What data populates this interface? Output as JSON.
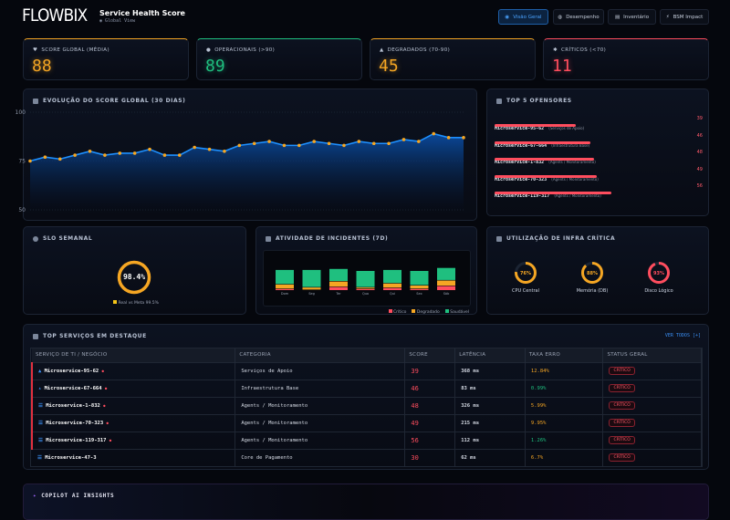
{
  "header": {
    "logo": "FLOWBIX",
    "title": "Service Health Score",
    "subtitle": "Global View",
    "nav": [
      {
        "label": "Visão Geral",
        "icon": "globe-icon",
        "active": true
      },
      {
        "label": "Desempenho",
        "icon": "gauge-icon"
      },
      {
        "label": "Inventário",
        "icon": "server-icon"
      },
      {
        "label": "BSM Impact",
        "icon": "bolt-icon"
      }
    ]
  },
  "kpis": [
    {
      "label": "SCORE GLOBAL (MÉDIA)",
      "value": "88",
      "color": "#f5a623",
      "icon": "heart-icon"
    },
    {
      "label": "OPERACIONAIS (>90)",
      "value": "89",
      "color": "#1fbf7f",
      "icon": "check-shield-icon"
    },
    {
      "label": "DEGRADADOS (70-90)",
      "value": "45",
      "color": "#f5a623",
      "icon": "warning-icon"
    },
    {
      "label": "CRÍTICOS (<70)",
      "value": "11",
      "color": "#ff4d5e",
      "icon": "alert-icon"
    }
  ],
  "chart_data": [
    {
      "type": "area",
      "title": "EVOLUÇÃO DO SCORE GLOBAL (30 DIAS)",
      "ylim": [
        50,
        100
      ],
      "yticks": [
        "100",
        "75",
        "50"
      ],
      "grid": true,
      "values": [
        75,
        77,
        76,
        78,
        80,
        78,
        79,
        79,
        81,
        78,
        78,
        82,
        81,
        80,
        83,
        84,
        85,
        83,
        83,
        85,
        84,
        83,
        85,
        84,
        84,
        86,
        85,
        89,
        87,
        87
      ],
      "line_color": "#1e90ff",
      "point_color": "#f5a623"
    },
    {
      "type": "bar",
      "stacked": true,
      "title": "ATIVIDADE DE INCIDENTES (7D)",
      "categories": [
        "Dom",
        "Seg",
        "Ter",
        "Qua",
        "Qui",
        "Sex",
        "Sáb"
      ],
      "series": [
        {
          "name": "Crítico",
          "color": "#ff4d5e",
          "values": [
            1,
            0,
            3,
            1,
            2,
            1,
            4
          ]
        },
        {
          "name": "Degradado",
          "color": "#f5a623",
          "values": [
            4,
            2,
            5,
            1,
            4,
            3,
            5
          ]
        },
        {
          "name": "Saudável",
          "color": "#1fbf7f",
          "values": [
            14,
            17,
            12,
            16,
            13,
            14,
            12
          ]
        }
      ],
      "legend": "bottom-right"
    }
  ],
  "offenders": {
    "title": "TOP 5 OFENSORES",
    "items": [
      {
        "name": "Microservice-95-62",
        "category": "(Serviços de Apoio)",
        "score": 39
      },
      {
        "name": "Microservice-67-664",
        "category": "(Infraestrutura Base)",
        "score": 46
      },
      {
        "name": "Microservice-1-832",
        "category": "(Agents / Monitoramento)",
        "score": 48
      },
      {
        "name": "Microservice-70-323",
        "category": "(Agents / Monitoramento)",
        "score": 49
      },
      {
        "name": "Microservice-119-317",
        "category": "(Agents / Monitoramento)",
        "score": 56
      }
    ]
  },
  "slo": {
    "title": "SLO SEMANAL",
    "value": "98.4%",
    "percent": 98.4,
    "legend": "Real vs Meta 99.5%"
  },
  "infra": {
    "title": "UTILIZAÇÃO DE INFRA CRÍTICA",
    "items": [
      {
        "label": "CPU Central",
        "value": "76%",
        "percent": 76,
        "color": "#f5a623"
      },
      {
        "label": "Memória (DB)",
        "value": "88%",
        "percent": 88,
        "color": "#f5a623"
      },
      {
        "label": "Disco Lógico",
        "value": "93%",
        "percent": 93,
        "color": "#ff4d5e"
      }
    ]
  },
  "services": {
    "title": "TOP SERVIÇOS EM DESTAQUE",
    "view_all": "VER TODOS [+]",
    "columns": [
      "SERVIÇO DE TI / NEGÓCIO",
      "CATEGORIA",
      "SCORE",
      "LATÊNCIA",
      "TAXA ERRO",
      "STATUS GERAL"
    ],
    "rows": [
      {
        "name": "Microservice-95-62",
        "category": "Serviços de Apoio",
        "score": "39",
        "latency": "368 ms",
        "error": "12.84%",
        "error_color": "#f5a623",
        "status": "CRÍTICO",
        "icon": "cluster-icon",
        "flag": true
      },
      {
        "name": "Microservice-67-664",
        "category": "Infraestrutura Base",
        "score": "46",
        "latency": "83 ms",
        "error": "0.99%",
        "error_color": "#1fbf7f",
        "status": "CRÍTICO",
        "icon": "network-icon",
        "flag": true
      },
      {
        "name": "Microservice-1-832",
        "category": "Agents / Monitoramento",
        "score": "48",
        "latency": "326 ms",
        "error": "5.99%",
        "error_color": "#f5a623",
        "status": "CRÍTICO",
        "icon": "server-icon",
        "flag": true
      },
      {
        "name": "Microservice-70-323",
        "category": "Agents / Monitoramento",
        "score": "49",
        "latency": "215 ms",
        "error": "9.95%",
        "error_color": "#f5a623",
        "status": "CRÍTICO",
        "icon": "server-icon",
        "flag": true
      },
      {
        "name": "Microservice-119-317",
        "category": "Agents / Monitoramento",
        "score": "56",
        "latency": "112 ms",
        "error": "1.26%",
        "error_color": "#1fbf7f",
        "status": "CRÍTICO",
        "icon": "server-icon",
        "flag": true
      },
      {
        "name": "Microservice-47-3",
        "category": "Core de Pagamento",
        "score": "30",
        "latency": "62 ms",
        "error": "6.7%",
        "error_color": "#f5a623",
        "status": "CRÍTICO",
        "icon": "server-icon",
        "flag": false
      }
    ]
  },
  "copilot": {
    "title": "COPILOT AI INSIGHTS"
  }
}
